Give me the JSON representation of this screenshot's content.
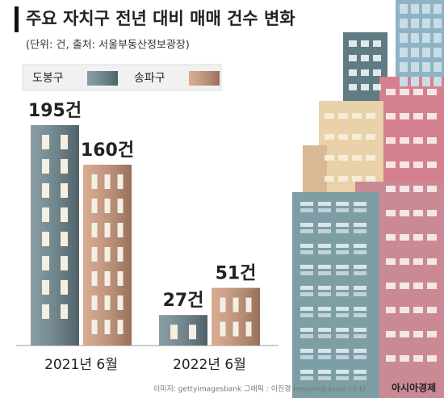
{
  "chart_data": {
    "type": "bar",
    "title": "주요 자치구 전년 대비 매매 건수 변화",
    "subtitle": "(단위: 건, 출처: 서울부동산정보광장)",
    "categories": [
      "2021년 6월",
      "2022년 6월"
    ],
    "series": [
      {
        "name": "도봉구",
        "color": "#6d8790",
        "values": [
          195,
          27
        ],
        "value_labels": [
          "195건",
          "27건"
        ]
      },
      {
        "name": "송파구",
        "color": "#d19a7c",
        "values": [
          160,
          51
        ],
        "value_labels": [
          "160건",
          "51건"
        ]
      }
    ],
    "legend": "top-left"
  },
  "footer": {
    "credit": "이미지: gettyimagesbank   그래픽 : 이진경 leejeen@asiae.co.kr",
    "logo": "아시아경제"
  }
}
